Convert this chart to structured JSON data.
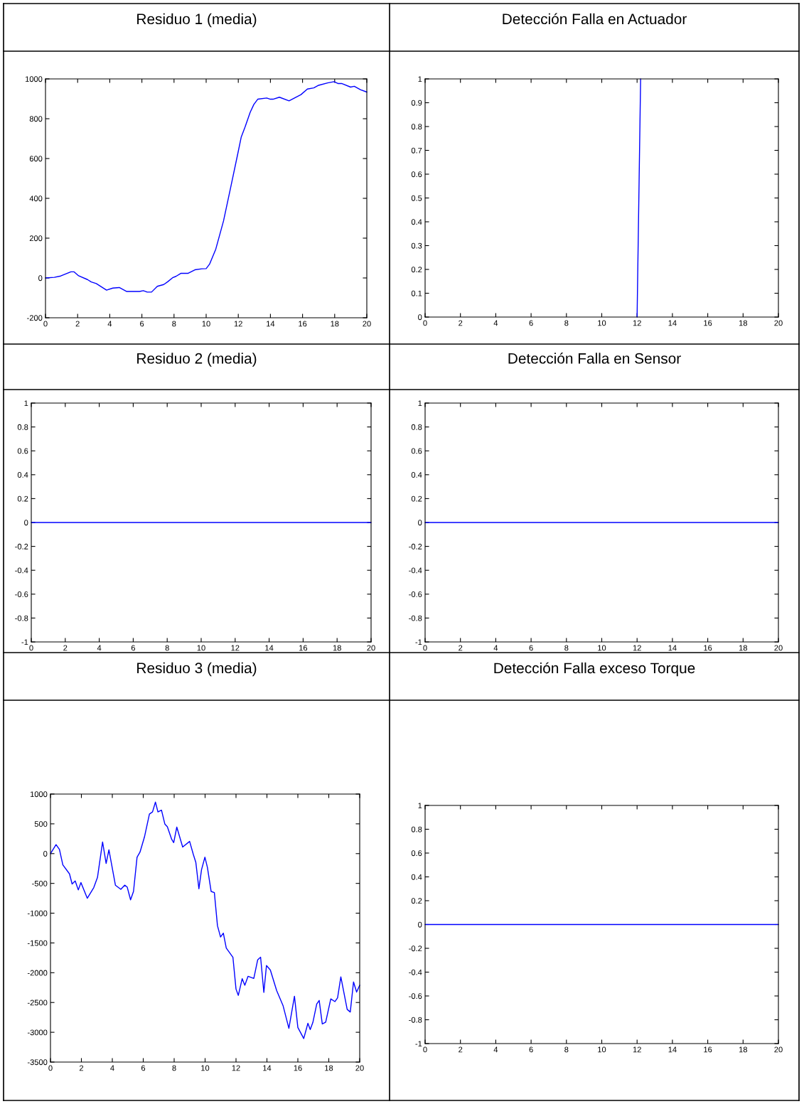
{
  "chart_data": [
    {
      "type": "line",
      "title": "Residuo 1 (media)",
      "xlim": [
        0,
        20
      ],
      "ylim": [
        -200,
        1000
      ],
      "xticks": [
        0,
        2,
        4,
        6,
        8,
        10,
        12,
        14,
        16,
        18,
        20
      ],
      "yticks": [
        -200,
        0,
        200,
        400,
        600,
        800,
        1000
      ],
      "series": [
        {
          "color": "#0000ff",
          "x": [
            0,
            0.55,
            0.95,
            1.58,
            1.77,
            2.06,
            2.61,
            2.85,
            3.16,
            3.8,
            4.19,
            4.59,
            5.06,
            5.85,
            6.09,
            6.33,
            6.6,
            6.96,
            7.36,
            7.59,
            7.91,
            8.12,
            8.42,
            8.86,
            9.3,
            9.73,
            10.0,
            10.21,
            10.6,
            11.08,
            11.55,
            11.95,
            12.18,
            12.42,
            12.74,
            12.97,
            13.21,
            13.77,
            14.0,
            14.16,
            14.56,
            15.16,
            15.9,
            16.3,
            16.7,
            17.0,
            17.56,
            17.96,
            18.2,
            18.43,
            18.99,
            19.22,
            19.62,
            20
          ],
          "values": [
            0,
            3,
            10,
            31,
            31,
            11,
            -8,
            -20,
            -28,
            -61,
            -51,
            -48,
            -68,
            -68,
            -64,
            -71,
            -71,
            -42,
            -33,
            -20,
            1,
            8,
            23,
            23,
            41,
            46,
            47,
            69,
            145,
            286,
            464,
            617,
            707,
            758,
            832,
            872,
            898,
            904,
            898,
            898,
            908,
            890,
            921,
            949,
            955,
            968,
            980,
            986,
            977,
            977,
            959,
            963,
            945,
            934
          ]
        }
      ]
    },
    {
      "type": "line",
      "title": "Detección Falla en Actuador",
      "xlim": [
        0,
        20
      ],
      "ylim": [
        0,
        1
      ],
      "xticks": [
        0,
        2,
        4,
        6,
        8,
        10,
        12,
        14,
        16,
        18,
        20
      ],
      "yticks": [
        0,
        0.1,
        0.2,
        0.3,
        0.4,
        0.5,
        0.6,
        0.7,
        0.8,
        0.9,
        1
      ],
      "series": [
        {
          "color": "#0000ff",
          "x": [
            12,
            12.2
          ],
          "values": [
            0,
            1
          ]
        }
      ]
    },
    {
      "type": "line",
      "title": "Residuo 2 (media)",
      "xlim": [
        0,
        20
      ],
      "ylim": [
        -1,
        1
      ],
      "xticks": [
        0,
        2,
        4,
        6,
        8,
        10,
        12,
        14,
        16,
        18,
        20
      ],
      "yticks": [
        -1,
        -0.8,
        -0.6,
        -0.4,
        -0.2,
        0,
        0.2,
        0.4,
        0.6,
        0.8,
        1
      ],
      "series": [
        {
          "color": "#0000ff",
          "x": [
            0,
            20
          ],
          "values": [
            0,
            0
          ]
        }
      ]
    },
    {
      "type": "line",
      "title": "Detección Falla en Sensor",
      "xlim": [
        0,
        20
      ],
      "ylim": [
        -1,
        1
      ],
      "xticks": [
        0,
        2,
        4,
        6,
        8,
        10,
        12,
        14,
        16,
        18,
        20
      ],
      "yticks": [
        -1,
        -0.8,
        -0.6,
        -0.4,
        -0.2,
        0,
        0.2,
        0.4,
        0.6,
        0.8,
        1
      ],
      "series": [
        {
          "color": "#0000ff",
          "x": [
            0,
            20
          ],
          "values": [
            0,
            0
          ]
        }
      ]
    },
    {
      "type": "line",
      "title": "Residuo 3 (media)",
      "xlim": [
        0,
        20
      ],
      "ylim": [
        -3500,
        1000
      ],
      "xticks": [
        0,
        2,
        4,
        6,
        8,
        10,
        12,
        14,
        16,
        18,
        20
      ],
      "yticks": [
        -3500,
        -3000,
        -2500,
        -2000,
        -1500,
        -1000,
        -500,
        0,
        500,
        1000
      ],
      "series": [
        {
          "color": "#0000ff",
          "x": [
            0,
            0.36,
            0.58,
            0.8,
            1.23,
            1.4,
            1.6,
            1.8,
            1.97,
            2.38,
            2.8,
            3.04,
            3.37,
            3.6,
            3.78,
            4.2,
            4.55,
            4.8,
            4.96,
            5.18,
            5.37,
            5.6,
            5.79,
            6.08,
            6.4,
            6.6,
            6.79,
            6.95,
            7.18,
            7.4,
            7.56,
            7.84,
            7.97,
            8.17,
            8.55,
            9.0,
            9.24,
            9.4,
            9.6,
            9.77,
            9.99,
            10.15,
            10.39,
            10.6,
            10.8,
            11.0,
            11.18,
            11.37,
            11.8,
            12.0,
            12.15,
            12.4,
            12.57,
            12.78,
            13.15,
            13.4,
            13.59,
            13.8,
            13.97,
            14.22,
            14.63,
            15.04,
            15.42,
            15.78,
            16.0,
            16.38,
            16.65,
            16.8,
            16.97,
            17.22,
            17.38,
            17.58,
            17.8,
            18.13,
            18.4,
            18.57,
            18.78,
            19.19,
            19.39,
            19.6,
            19.8,
            20
          ],
          "values": [
            0,
            150,
            70,
            -190,
            -340,
            -510,
            -460,
            -610,
            -485,
            -750,
            -570,
            -400,
            195,
            -165,
            65,
            -530,
            -600,
            -530,
            -560,
            -775,
            -635,
            -60,
            25,
            280,
            665,
            700,
            865,
            700,
            730,
            495,
            450,
            240,
            185,
            445,
            110,
            205,
            -15,
            -145,
            -590,
            -270,
            -60,
            -230,
            -635,
            -655,
            -1210,
            -1400,
            -1335,
            -1585,
            -1740,
            -2275,
            -2380,
            -2100,
            -2210,
            -2060,
            -2095,
            -1785,
            -1740,
            -2330,
            -1880,
            -1955,
            -2300,
            -2550,
            -2935,
            -2395,
            -2920,
            -3105,
            -2850,
            -2955,
            -2835,
            -2525,
            -2465,
            -2860,
            -2830,
            -2440,
            -2485,
            -2420,
            -2070,
            -2615,
            -2660,
            -2155,
            -2325,
            -2210
          ]
        }
      ]
    },
    {
      "type": "line",
      "title": "Detección Falla exceso Torque",
      "xlim": [
        0,
        20
      ],
      "ylim": [
        -1,
        1
      ],
      "xticks": [
        0,
        2,
        4,
        6,
        8,
        10,
        12,
        14,
        16,
        18,
        20
      ],
      "yticks": [
        -1,
        -0.8,
        -0.6,
        -0.4,
        -0.2,
        0,
        0.2,
        0.4,
        0.6,
        0.8,
        1
      ],
      "series": [
        {
          "color": "#0000ff",
          "x": [
            0,
            20
          ],
          "values": [
            0,
            0
          ]
        }
      ]
    }
  ]
}
